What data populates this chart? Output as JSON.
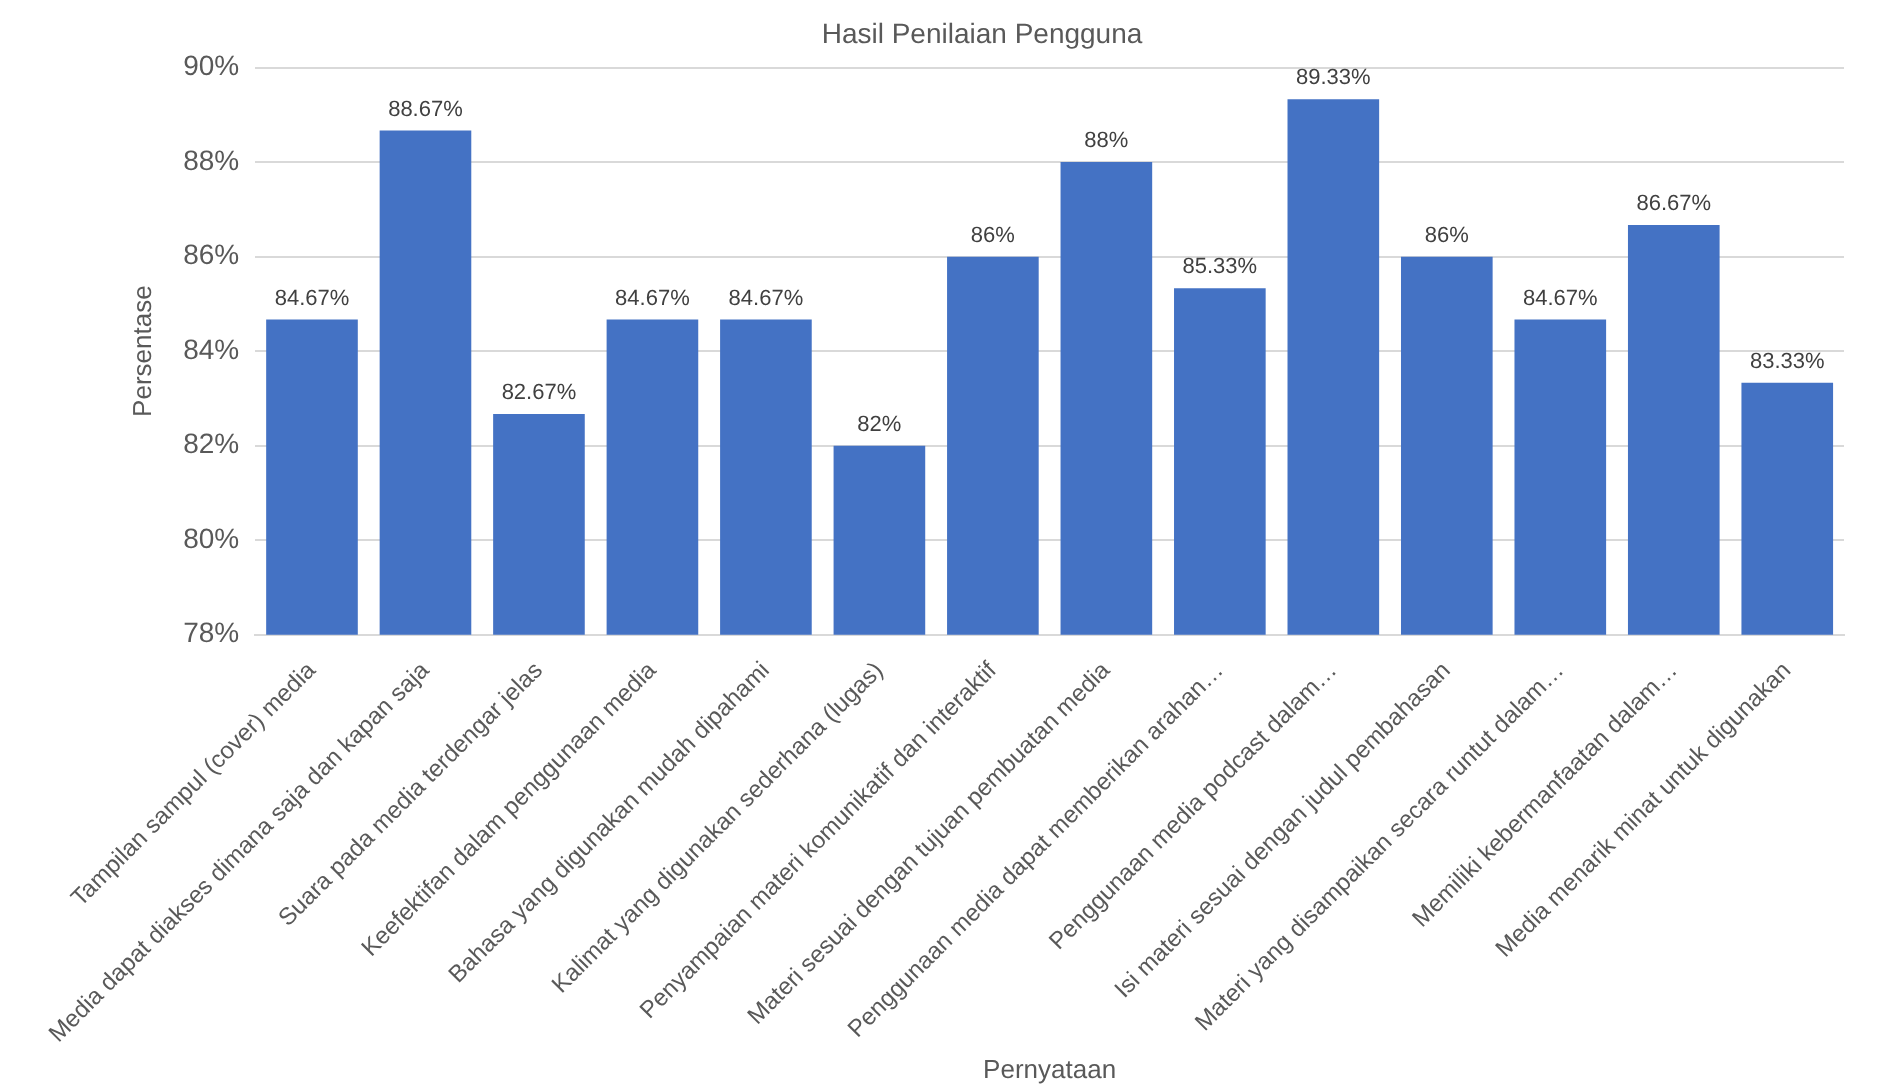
{
  "chart_data": {
    "type": "bar",
    "title": "Hasil Penilaian Pengguna",
    "xlabel": "Pernyataan",
    "ylabel": "Persentase",
    "categories": [
      "Tampilan sampul (cover) media",
      "Media dapat diakses dimana saja dan kapan saja",
      "Suara pada media terdengar jelas",
      "Keefektifan dalam penggunaan media",
      "Bahasa yang digunakan mudah dipahami",
      "Kalimat yang digunakan sederhana (lugas)",
      "Penyampaian materi komunikatif dan interaktif",
      "Materi sesuai dengan tujuan pembuatan media",
      "Penggunaan media dapat memberikan arahan…",
      "Penggunaan media podcast dalam…",
      "Isi materi sesuai dengan judul pembahasan",
      "Materi yang disampaikan secara runtut dalam…",
      "Memiliki kebermanfaatan dalam…",
      "Media menarik minat untuk digunakan"
    ],
    "values": [
      84.67,
      88.67,
      82.67,
      84.67,
      84.67,
      82,
      86,
      88,
      85.33,
      89.33,
      86,
      84.67,
      86.67,
      83.33
    ],
    "value_labels": [
      "84.67%",
      "88.67%",
      "82.67%",
      "84.67%",
      "84.67%",
      "82%",
      "86%",
      "88%",
      "85.33%",
      "89.33%",
      "86%",
      "84.67%",
      "86.67%",
      "83.33%"
    ],
    "color": "#4472c4",
    "ylim": [
      78,
      90
    ],
    "yticks": [
      {
        "value": 78,
        "label": "78%"
      },
      {
        "value": 80,
        "label": "80%"
      },
      {
        "value": 82,
        "label": "82%"
      },
      {
        "value": 84,
        "label": "84%"
      },
      {
        "value": 86,
        "label": "86%"
      },
      {
        "value": 88,
        "label": "88%"
      },
      {
        "value": 90,
        "label": "90%"
      }
    ],
    "grid": "y",
    "legend": false
  }
}
